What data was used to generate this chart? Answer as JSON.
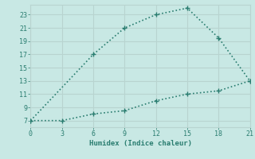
{
  "xlabel": "Humidex (Indice chaleur)",
  "line1_x": [
    0,
    6,
    9,
    12,
    15,
    18,
    21
  ],
  "line1_y": [
    7,
    17,
    21,
    23,
    24,
    19.5,
    13
  ],
  "line2_x": [
    0,
    3,
    6,
    9,
    12,
    15,
    18,
    21
  ],
  "line2_y": [
    7,
    7,
    8.0,
    8.5,
    10,
    11,
    11.5,
    13
  ],
  "line_color": "#2a7d70",
  "bg_color": "#c8e8e4",
  "grid_color": "#b8d4d0",
  "xlim": [
    0,
    21
  ],
  "ylim": [
    6,
    24.5
  ],
  "xticks": [
    0,
    3,
    6,
    9,
    12,
    15,
    18,
    21
  ],
  "yticks": [
    7,
    9,
    11,
    13,
    15,
    17,
    19,
    21,
    23
  ]
}
